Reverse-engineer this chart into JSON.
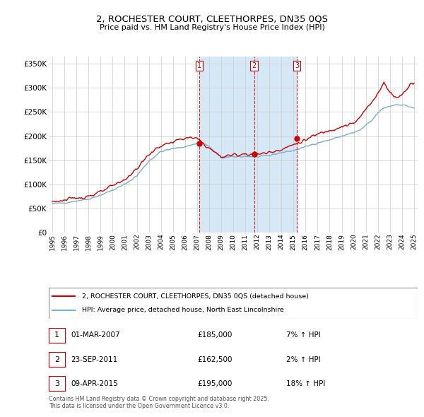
{
  "title": "2, ROCHESTER COURT, CLEETHORPES, DN35 0QS",
  "subtitle": "Price paid vs. HM Land Registry's House Price Index (HPI)",
  "legend_label_red": "2, ROCHESTER COURT, CLEETHORPES, DN35 0QS (detached house)",
  "legend_label_blue": "HPI: Average price, detached house, North East Lincolnshire",
  "ylabel_ticks": [
    "£0",
    "£50K",
    "£100K",
    "£150K",
    "£200K",
    "£250K",
    "£300K",
    "£350K"
  ],
  "ytick_values": [
    0,
    50000,
    100000,
    150000,
    200000,
    250000,
    300000,
    350000
  ],
  "ylim": [
    0,
    365000
  ],
  "xlim_start": 1994.7,
  "xlim_end": 2025.3,
  "red_color": "#cc0000",
  "blue_color": "#7aadcf",
  "shade_color": "#d6e8f5",
  "vline_color": "#cc0000",
  "grid_color": "#cccccc",
  "bg_color": "#ffffff",
  "sale_markers": [
    {
      "year": 2007.17,
      "price": 185000,
      "label": "1"
    },
    {
      "year": 2011.73,
      "price": 162500,
      "label": "2"
    },
    {
      "year": 2015.27,
      "price": 195000,
      "label": "3"
    }
  ],
  "table_rows": [
    {
      "num": "1",
      "date": "01-MAR-2007",
      "price": "£185,000",
      "hpi": "7% ↑ HPI"
    },
    {
      "num": "2",
      "date": "23-SEP-2011",
      "price": "£162,500",
      "hpi": "2% ↑ HPI"
    },
    {
      "num": "3",
      "date": "09-APR-2015",
      "price": "£195,000",
      "hpi": "18% ↑ HPI"
    }
  ],
  "footer": "Contains HM Land Registry data © Crown copyright and database right 2025.\nThis data is licensed under the Open Government Licence v3.0."
}
